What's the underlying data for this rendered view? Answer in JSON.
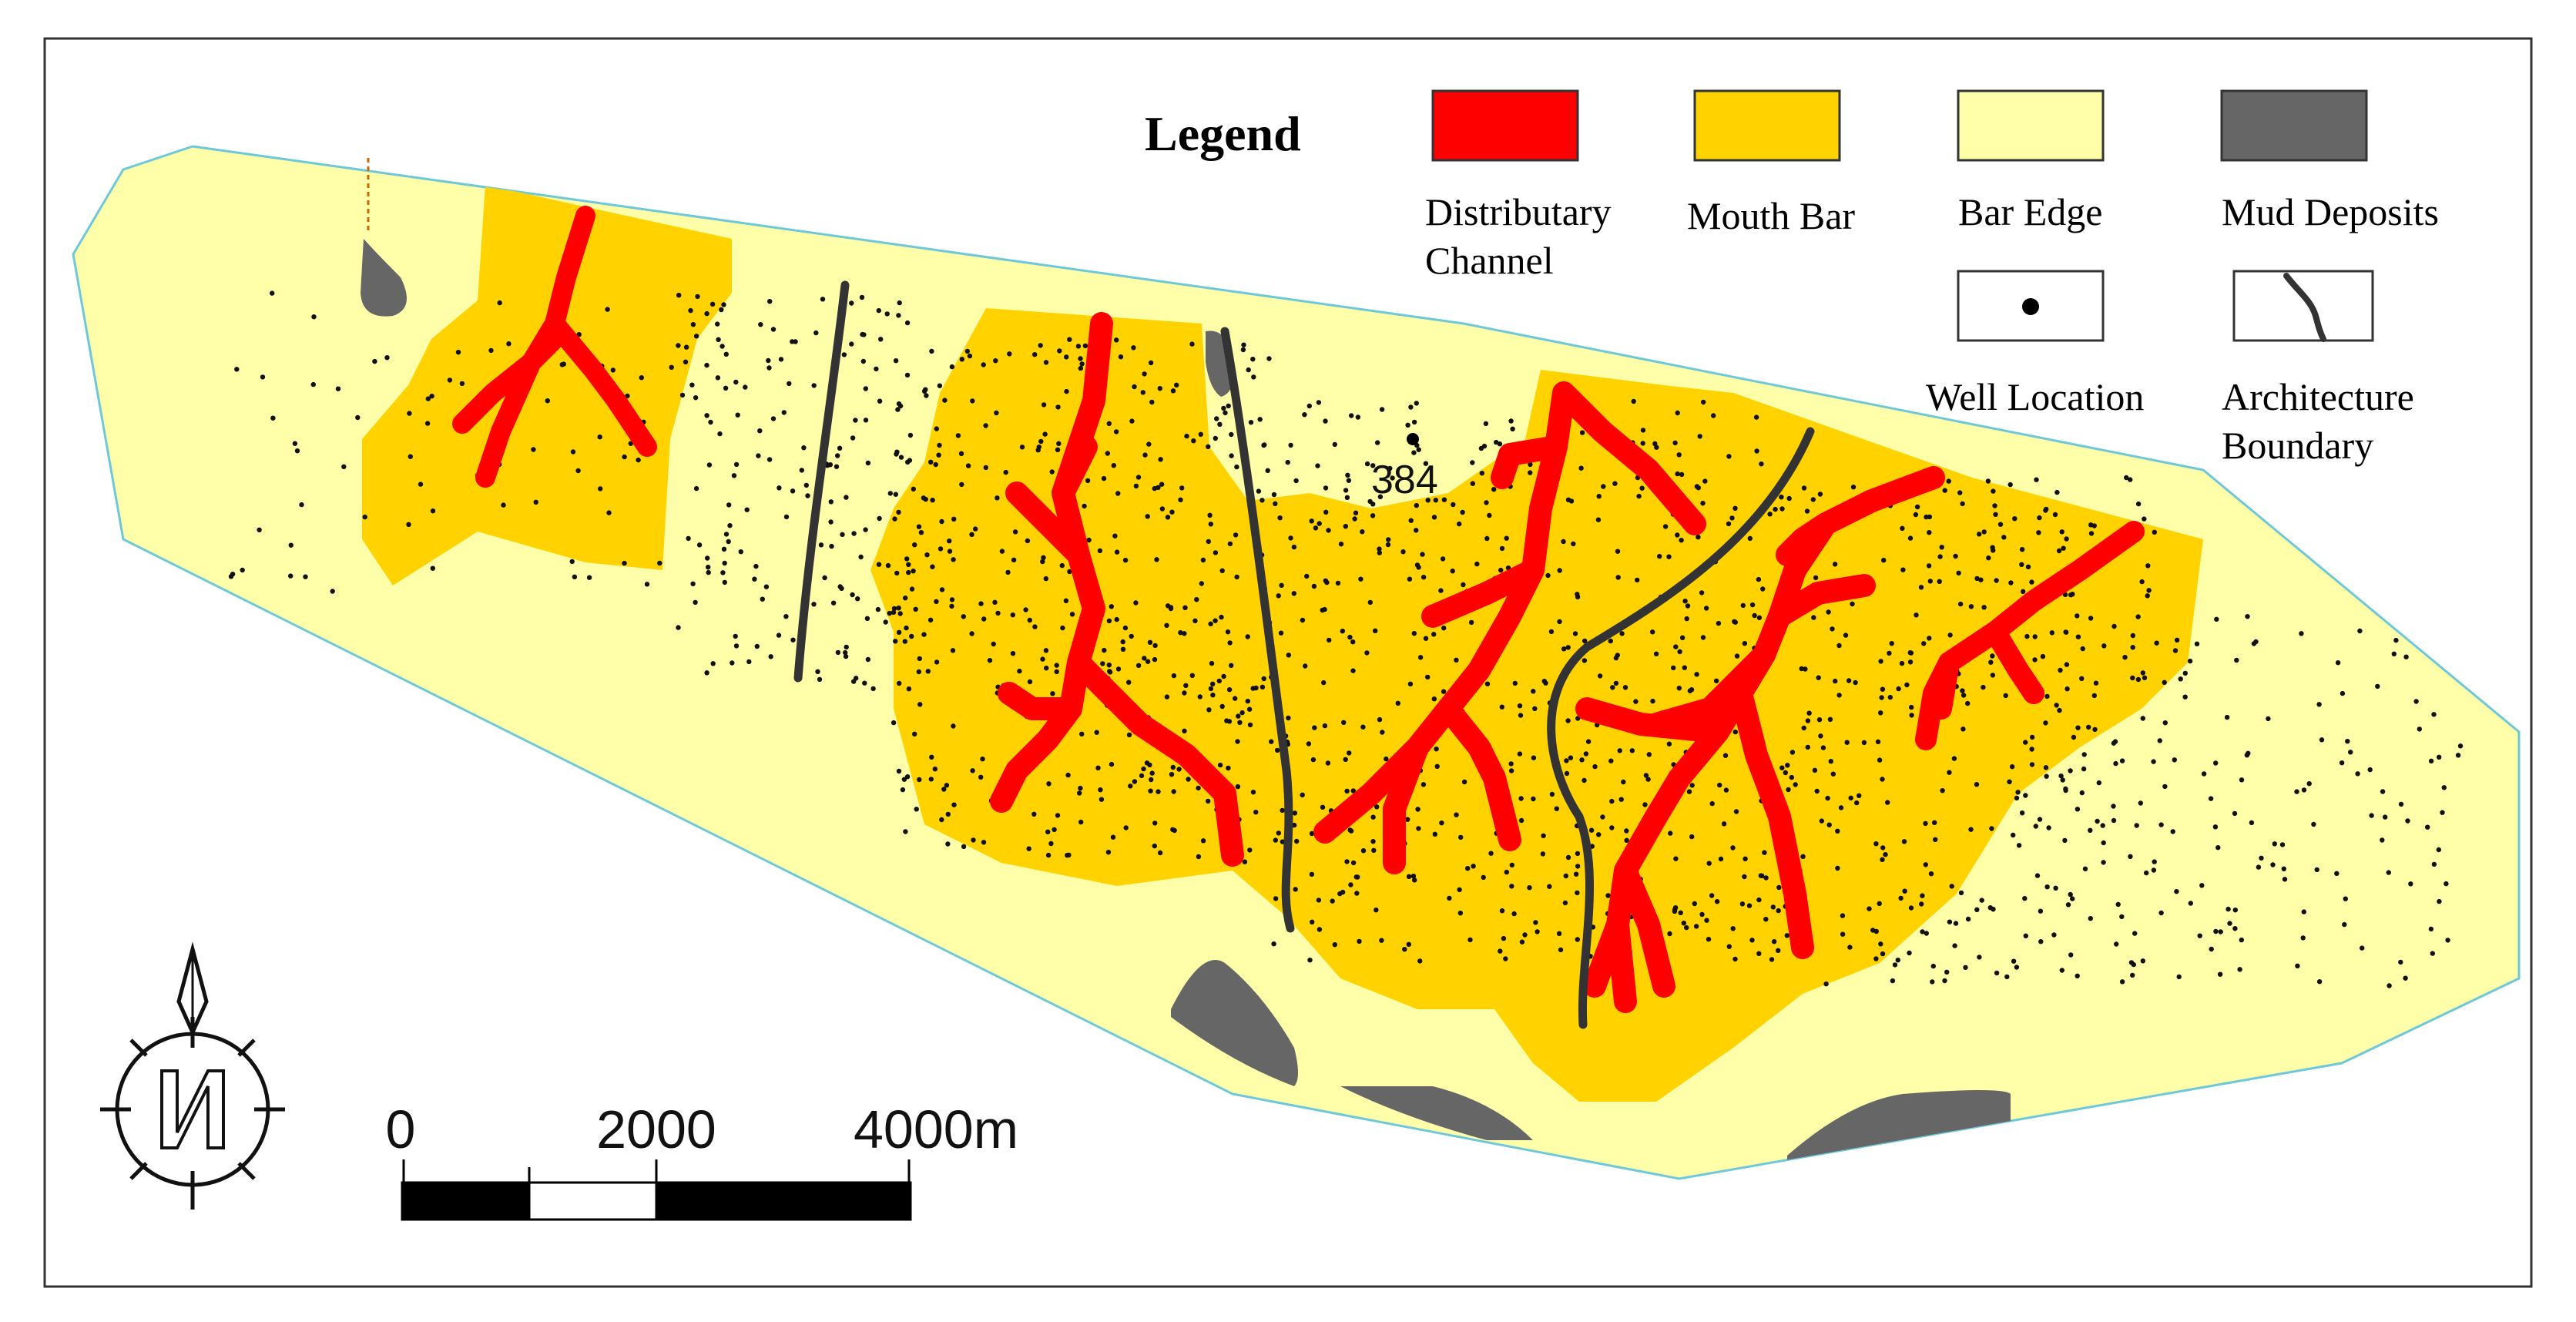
{
  "legend": {
    "title": "Legend",
    "items": [
      {
        "label_line1": "Distributary",
        "label_line2": "Channel",
        "color": "#ff0000",
        "symbol": "filled-box"
      },
      {
        "label_line1": "Mouth Bar",
        "label_line2": "",
        "color": "#ffd200",
        "symbol": "filled-box"
      },
      {
        "label_line1": "Bar Edge",
        "label_line2": "",
        "color": "#ffffaa",
        "symbol": "filled-box"
      },
      {
        "label_line1": "Mud Deposits",
        "label_line2": "",
        "color": "#666666",
        "symbol": "filled-box"
      },
      {
        "label_line1": "Well Location",
        "label_line2": "",
        "color": "#000000",
        "symbol": "dot-box"
      },
      {
        "label_line1": "Architecture",
        "label_line2": "Boundary",
        "color": "#333333",
        "symbol": "curve-box"
      }
    ]
  },
  "well_label": "384",
  "scale_bar": {
    "labels": [
      "0",
      "2000",
      "4000m"
    ],
    "segment_colors": [
      "#000000",
      "#ffffff",
      "#000000",
      "#000000"
    ]
  },
  "compass": {
    "letter": "N",
    "icon": "north-arrow-compass-icon"
  },
  "colors": {
    "channel": "#ff0000",
    "mouth_bar": "#ffd200",
    "bar_edge": "#ffffaa",
    "mud": "#666666",
    "boundary": "#333333",
    "outline": "#6ec8dc",
    "frame": "#333333"
  }
}
